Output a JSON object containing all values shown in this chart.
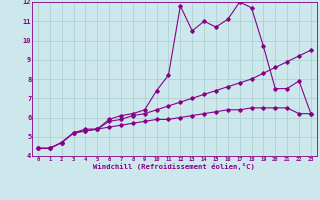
{
  "x_ticks": [
    0,
    1,
    2,
    3,
    4,
    5,
    6,
    7,
    8,
    9,
    10,
    11,
    12,
    13,
    14,
    15,
    16,
    17,
    18,
    19,
    20,
    21,
    22,
    23
  ],
  "line1_x": [
    0,
    1,
    2,
    3,
    4,
    5,
    6,
    7,
    8,
    9,
    10,
    11,
    12,
    13,
    14,
    15,
    16,
    17,
    18,
    19,
    20,
    21,
    22,
    23
  ],
  "line1_y": [
    4.4,
    4.4,
    4.7,
    5.2,
    5.3,
    5.4,
    5.8,
    5.9,
    6.1,
    6.2,
    6.4,
    6.6,
    6.8,
    7.0,
    7.2,
    7.4,
    7.6,
    7.8,
    8.0,
    8.3,
    8.6,
    8.9,
    9.2,
    9.5
  ],
  "line2_x": [
    0,
    1,
    2,
    3,
    4,
    5,
    6,
    7,
    8,
    9,
    10,
    11,
    12,
    13,
    14,
    15,
    16,
    17,
    18,
    19,
    20,
    21,
    22,
    23
  ],
  "line2_y": [
    4.4,
    4.4,
    4.7,
    5.2,
    5.4,
    5.4,
    5.9,
    6.1,
    6.2,
    6.4,
    7.4,
    8.2,
    11.8,
    10.5,
    11.0,
    10.7,
    11.1,
    12.0,
    11.7,
    9.7,
    7.5,
    7.5,
    7.9,
    6.2
  ],
  "line3_x": [
    0,
    1,
    2,
    3,
    4,
    5,
    6,
    7,
    8,
    9,
    10,
    11,
    12,
    13,
    14,
    15,
    16,
    17,
    18,
    19,
    20,
    21,
    22,
    23
  ],
  "line3_y": [
    4.4,
    4.4,
    4.7,
    5.2,
    5.3,
    5.4,
    5.5,
    5.6,
    5.7,
    5.8,
    5.9,
    5.9,
    6.0,
    6.1,
    6.2,
    6.3,
    6.4,
    6.4,
    6.5,
    6.5,
    6.5,
    6.5,
    6.2,
    6.2
  ],
  "line_color": "#880088",
  "bg_color": "#cce8ec",
  "grid_color": "#aacccc",
  "xlabel": "Windchill (Refroidissement éolien,°C)",
  "ylim": [
    4,
    12
  ],
  "xlim": [
    -0.5,
    23.5
  ],
  "yticks": [
    4,
    5,
    6,
    7,
    8,
    9,
    10,
    11,
    12
  ]
}
